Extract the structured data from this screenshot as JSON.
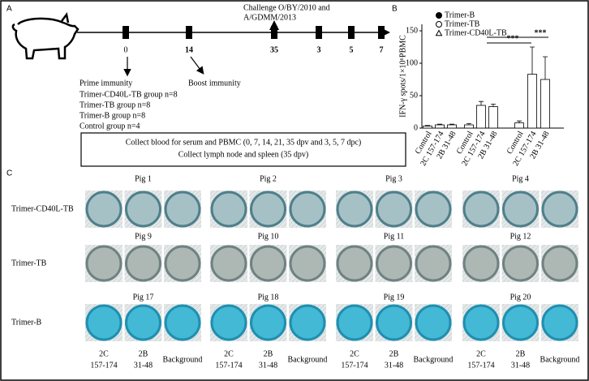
{
  "panel_a": {
    "label": "A",
    "challenge": [
      "Challenge O/BY/2010 and",
      "A/GDMM/2013"
    ],
    "timepoints": [
      "0",
      "14",
      "35",
      "3",
      "5",
      "7"
    ],
    "prime": "Prime immunity",
    "boost": "Boost immunity",
    "groups": [
      "Trimer-CD40L-TB group n=8",
      "Trimer-TB group n=8",
      "Trimer-B group n=8",
      "Control group n=4"
    ],
    "box": [
      "Collect  blood for  serum and PBMC (0, 7, 14, 21, 35 dpv and 3, 5, 7 dpc)",
      "Collect lymph node and spleen (35 dpv)"
    ]
  },
  "chart_data": {
    "type": "bar",
    "label": "B",
    "y_label": "IFN-γ spots/1×10⁶PBMC",
    "categories": [
      "Control",
      "2C 157-174",
      "2B 31-48"
    ],
    "series": [
      {
        "name": "Trimer-B",
        "marker": "filled-circle",
        "values": [
          3,
          5,
          5
        ],
        "errors": [
          1,
          1,
          1
        ]
      },
      {
        "name": "Trimer-TB",
        "marker": "open-circle",
        "values": [
          5,
          35,
          33
        ],
        "errors": [
          2,
          6,
          4
        ]
      },
      {
        "name": "Trimer-CD40L-TB",
        "marker": "triangle",
        "values": [
          8,
          83,
          75
        ],
        "errors": [
          3,
          42,
          35
        ]
      }
    ],
    "color": "#ffffff",
    "ylim": [
      0,
      160
    ],
    "yticks": [
      0,
      50,
      100,
      150
    ],
    "annotations": [
      "***",
      "***"
    ]
  },
  "panel_c": {
    "label": "C",
    "rows": [
      {
        "label": "Trimer-CD40L-TB",
        "pigs": [
          "Pig 1",
          "Pig 2",
          "Pig 3",
          "Pig 4"
        ]
      },
      {
        "label": "Trimer-TB",
        "pigs": [
          "Pig 9",
          "Pig 10",
          "Pig 11",
          "Pig 12"
        ]
      },
      {
        "label": "Trimer-B",
        "pigs": [
          "Pig 17",
          "Pig 18",
          "Pig 19",
          "Pig 20"
        ]
      }
    ],
    "columns": [
      [
        "2C",
        "157-174"
      ],
      [
        "2B",
        "31-48"
      ],
      [
        "Background"
      ]
    ]
  }
}
